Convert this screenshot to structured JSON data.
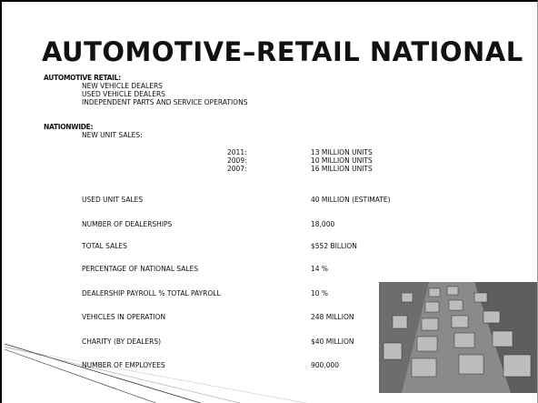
{
  "title": "AUTOMOTIVE–RETAIL NATIONAL",
  "retail": {
    "heading": "AUTOMOTIVE RETAIL:",
    "items": [
      "NEW VEHICLE DEALERS",
      "USED VEHICLE DEALERS",
      "INDEPENDENT PARTS AND SERVICE OPERATIONS"
    ]
  },
  "nationwide": {
    "heading": "NATIONWIDE:",
    "new_unit_sales": {
      "label": "NEW UNIT SALES:",
      "rows": [
        [
          "2011:",
          "13 MILLION UNITS"
        ],
        [
          "2009:",
          "10 MILLION UNITS"
        ],
        [
          "2007:",
          "16 MILLION UNITS"
        ]
      ]
    },
    "stats": [
      [
        "USED UNIT SALES",
        "40 MILLION (ESTIMATE)"
      ],
      [
        "NUMBER OF DEALERSHIPS",
        "18,000"
      ],
      [
        "TOTAL SALES",
        "$552  BILLION"
      ],
      [
        "PERCENTAGE OF NATIONAL SALES",
        "14 %"
      ],
      [
        "DEALERSHIP PAYROLL % TOTAL PAYROLL",
        "10 %"
      ],
      [
        "VEHICLES IN OPERATION",
        "248 MILLION"
      ],
      [
        "CHARITY     (BY DEALERS)",
        "$40 MILLION"
      ],
      [
        "NUMBER OF EMPLOYEES",
        "900,000"
      ]
    ]
  }
}
